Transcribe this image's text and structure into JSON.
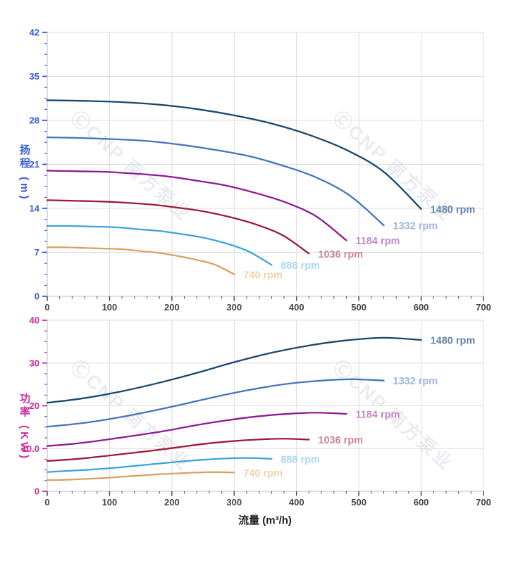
{
  "chart_data": {
    "type": "line",
    "background": "#ffffff",
    "grid_color": "#dcdcdc",
    "spine_color": "#c6ccd8",
    "x_axis": {
      "title": "流量 (m³/h)",
      "range": [
        0,
        700
      ],
      "major_tick": 100,
      "minor_tick": 20,
      "tick_labels": [
        "0",
        "100",
        "200",
        "300",
        "400",
        "500",
        "600",
        "700"
      ],
      "tick_color": "#555555",
      "label_color": "#444444"
    },
    "charts": [
      {
        "name": "head-vs-flow",
        "y_axis": {
          "title": "扬程 (m)",
          "color": "#3a5bd9",
          "range": [
            0,
            42
          ],
          "major_tick": 7,
          "minor_tick": 1.75,
          "tick_labels": [
            "0",
            "7",
            "14",
            "21",
            "28",
            "35",
            "42"
          ]
        },
        "series": [
          {
            "name": "1480 rpm",
            "color": "#19486e",
            "label_color": "#6484ad",
            "points": [
              [
                0,
                31.2
              ],
              [
                60,
                31.1
              ],
              [
                120,
                30.9
              ],
              [
                180,
                30.5
              ],
              [
                240,
                29.8
              ],
              [
                300,
                28.8
              ],
              [
                360,
                27.5
              ],
              [
                420,
                25.7
              ],
              [
                480,
                23.3
              ],
              [
                540,
                19.8
              ],
              [
                600,
                13.9
              ]
            ]
          },
          {
            "name": "1332 rpm",
            "color": "#4674bb",
            "label_color": "#9db6df",
            "points": [
              [
                0,
                25.3
              ],
              [
                54,
                25.2
              ],
              [
                108,
                25.0
              ],
              [
                162,
                24.7
              ],
              [
                216,
                24.1
              ],
              [
                270,
                23.3
              ],
              [
                324,
                22.3
              ],
              [
                378,
                20.8
              ],
              [
                432,
                18.9
              ],
              [
                486,
                16.0
              ],
              [
                540,
                11.3
              ]
            ]
          },
          {
            "name": "1184 rpm",
            "color": "#8e1a91",
            "label_color": "#c389c6",
            "points": [
              [
                0,
                20.0
              ],
              [
                48,
                19.9
              ],
              [
                96,
                19.8
              ],
              [
                144,
                19.5
              ],
              [
                192,
                19.1
              ],
              [
                240,
                18.4
              ],
              [
                288,
                17.6
              ],
              [
                336,
                16.4
              ],
              [
                384,
                14.9
              ],
              [
                432,
                12.7
              ],
              [
                480,
                8.9
              ]
            ]
          },
          {
            "name": "1036 rpm",
            "color": "#9d1b38",
            "label_color": "#c9879a",
            "points": [
              [
                0,
                15.3
              ],
              [
                42,
                15.2
              ],
              [
                84,
                15.1
              ],
              [
                126,
                14.9
              ],
              [
                168,
                14.6
              ],
              [
                210,
                14.1
              ],
              [
                252,
                13.5
              ],
              [
                294,
                12.6
              ],
              [
                336,
                11.4
              ],
              [
                378,
                9.7
              ],
              [
                420,
                6.8
              ]
            ]
          },
          {
            "name": "888 rpm",
            "color": "#3ba4dc",
            "label_color": "#a8d8f2",
            "points": [
              [
                0,
                11.2
              ],
              [
                36,
                11.2
              ],
              [
                72,
                11.1
              ],
              [
                108,
                11.0
              ],
              [
                144,
                10.7
              ],
              [
                180,
                10.4
              ],
              [
                216,
                9.9
              ],
              [
                252,
                9.3
              ],
              [
                288,
                8.4
              ],
              [
                324,
                7.1
              ],
              [
                360,
                5.0
              ]
            ]
          },
          {
            "name": "740 rpm",
            "color": "#d7a263",
            "label_color": "#eed4ab",
            "points": [
              [
                0,
                7.8
              ],
              [
                30,
                7.8
              ],
              [
                60,
                7.7
              ],
              [
                90,
                7.6
              ],
              [
                120,
                7.5
              ],
              [
                150,
                7.2
              ],
              [
                180,
                6.9
              ],
              [
                210,
                6.4
              ],
              [
                240,
                5.8
              ],
              [
                270,
                5.0
              ],
              [
                300,
                3.5
              ]
            ]
          }
        ]
      },
      {
        "name": "power-vs-flow",
        "y_axis": {
          "title": "功率 (KW)",
          "color": "#c92d9c",
          "range": [
            0,
            40
          ],
          "major_tick": 10,
          "minor_tick": 2.5,
          "tick_labels": [
            "0",
            "10.0",
            "20",
            "30",
            "40"
          ]
        },
        "series": [
          {
            "name": "1480 rpm",
            "color": "#19486e",
            "label_color": "#6484ad",
            "points": [
              [
                0,
                20.7
              ],
              [
                60,
                21.8
              ],
              [
                120,
                23.4
              ],
              [
                180,
                25.4
              ],
              [
                240,
                27.7
              ],
              [
                300,
                30.2
              ],
              [
                360,
                32.4
              ],
              [
                420,
                34.1
              ],
              [
                480,
                35.3
              ],
              [
                540,
                35.9
              ],
              [
                600,
                35.4
              ]
            ]
          },
          {
            "name": "1332 rpm",
            "color": "#4674bb",
            "label_color": "#9db6df",
            "points": [
              [
                0,
                15.1
              ],
              [
                54,
                15.9
              ],
              [
                108,
                17.1
              ],
              [
                162,
                18.6
              ],
              [
                216,
                20.3
              ],
              [
                270,
                22.1
              ],
              [
                324,
                23.7
              ],
              [
                378,
                25.0
              ],
              [
                432,
                25.8
              ],
              [
                486,
                26.2
              ],
              [
                540,
                25.9
              ]
            ]
          },
          {
            "name": "1184 rpm",
            "color": "#8e1a91",
            "label_color": "#c389c6",
            "points": [
              [
                0,
                10.6
              ],
              [
                48,
                11.2
              ],
              [
                96,
                12.1
              ],
              [
                144,
                13.1
              ],
              [
                192,
                14.2
              ],
              [
                240,
                15.5
              ],
              [
                288,
                16.6
              ],
              [
                336,
                17.5
              ],
              [
                384,
                18.1
              ],
              [
                432,
                18.4
              ],
              [
                480,
                18.1
              ]
            ]
          },
          {
            "name": "1036 rpm",
            "color": "#9d1b38",
            "label_color": "#c9879a",
            "points": [
              [
                0,
                7.1
              ],
              [
                42,
                7.5
              ],
              [
                84,
                8.1
              ],
              [
                126,
                8.8
              ],
              [
                168,
                9.5
              ],
              [
                210,
                10.3
              ],
              [
                252,
                11.1
              ],
              [
                294,
                11.7
              ],
              [
                336,
                12.1
              ],
              [
                378,
                12.3
              ],
              [
                420,
                12.1
              ]
            ]
          },
          {
            "name": "888 rpm",
            "color": "#3ba4dc",
            "label_color": "#a8d8f2",
            "points": [
              [
                0,
                4.5
              ],
              [
                36,
                4.8
              ],
              [
                72,
                5.1
              ],
              [
                108,
                5.5
              ],
              [
                144,
                6.0
              ],
              [
                180,
                6.5
              ],
              [
                216,
                7.0
              ],
              [
                252,
                7.4
              ],
              [
                288,
                7.7
              ],
              [
                324,
                7.8
              ],
              [
                360,
                7.6
              ]
            ]
          },
          {
            "name": "740 rpm",
            "color": "#d7a263",
            "label_color": "#eed4ab",
            "points": [
              [
                0,
                2.6
              ],
              [
                30,
                2.7
              ],
              [
                60,
                2.9
              ],
              [
                90,
                3.1
              ],
              [
                120,
                3.4
              ],
              [
                150,
                3.7
              ],
              [
                180,
                4.0
              ],
              [
                210,
                4.2
              ],
              [
                240,
                4.4
              ],
              [
                270,
                4.5
              ],
              [
                300,
                4.4
              ]
            ]
          }
        ]
      }
    ]
  },
  "watermark": {
    "text": "ⒸCNP 南方泵业"
  }
}
